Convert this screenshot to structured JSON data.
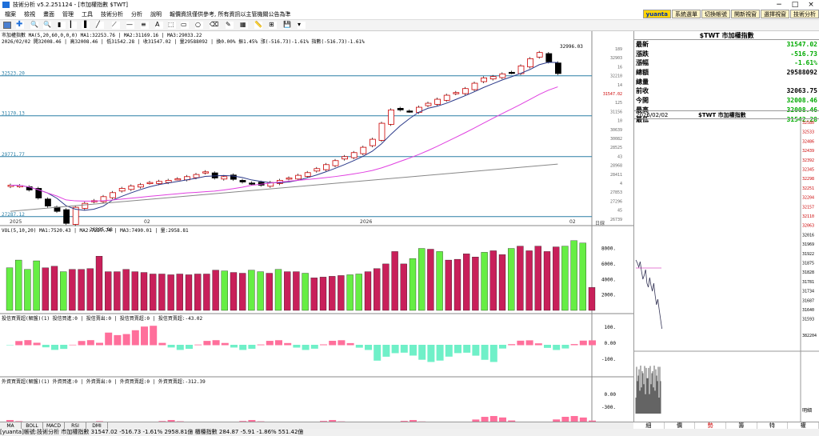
{
  "window": {
    "title": "技術分析 v5.2.251124 - [市加權指數 $TWT]",
    "minimize": "−",
    "maximize": "□",
    "close": "×"
  },
  "menu": [
    "檔案",
    "檢視",
    "畫面",
    "管理",
    "工具",
    "技術分析",
    "分析",
    "說明",
    "報價資訊僅供參考, 所有資訊以主管機關公告為準"
  ],
  "top_buttons": [
    "yuanta",
    "系統選單",
    "切換帳號",
    "開新視窗",
    "選擇視窗",
    "技術分析"
  ],
  "price_pane": {
    "title_line": "市加權指數  MA(5,20,60,0,0,0) MA1:32253.76 | MA2:31169.16 | MA3:29033.22",
    "info_line": "2026/02/02 開32008.46 | 高32008.46 | 低31542.28 | 收31547.02 | 量29588092 | 換0.00% 振1.45% 漲(-516.73)-1.61% 指數(-516.73)-1.61%",
    "levels": [
      {
        "label": "32523.20",
        "y": 0.161
      },
      {
        "label": "31170.13",
        "y": 0.386
      },
      {
        "label": "29771.77",
        "y": 0.616
      },
      {
        "label": "27287.12",
        "y": 0.954
      }
    ],
    "high_label": "32996.03",
    "low_label": "26395.98",
    "current_label": "31547.02",
    "axis_ticks": [
      "189",
      "32903",
      "16",
      "32210",
      "14",
      "31547.02",
      "125",
      "31156",
      "10",
      "30639",
      "30082",
      "28525",
      "43",
      "28968",
      "28411",
      "4",
      "27853",
      "27296",
      "45",
      "26739"
    ],
    "date_labels": [
      "2025",
      "02",
      "2026",
      "02"
    ],
    "axis_unit": "日線"
  },
  "vol_pane": {
    "title": "VOL(5,10,20)  MA1:7520.43 | MA2:7227.74 | MA3:7490.01 | 量:2958.81",
    "ticks": [
      "8000.",
      "6000.",
      "4000.",
      "2000."
    ],
    "values": [
      5500,
      6500,
      5300,
      6400,
      5500,
      5700,
      5000,
      5300,
      5300,
      5400,
      7000,
      5000,
      5000,
      5300,
      5000,
      4900,
      4700,
      4700,
      4600,
      4700,
      4600,
      4700,
      4700,
      5200,
      5100,
      4900,
      4800,
      5200,
      5000,
      4800,
      5300,
      5000,
      5000,
      4800,
      4200,
      4300,
      4400,
      4500,
      4600,
      4700,
      5000,
      5400,
      6000,
      7600,
      6000,
      6700,
      8000,
      7900,
      7600,
      6500,
      6600,
      7300,
      6900,
      7500,
      7700,
      7200,
      8000,
      8300,
      7700,
      8300,
      7600,
      8200,
      8300,
      9000,
      8700,
      2958.81
    ],
    "up": [
      1,
      1,
      1,
      1,
      0,
      0,
      1,
      0,
      0,
      0,
      0,
      0,
      0,
      0,
      0,
      0,
      0,
      0,
      0,
      0,
      0,
      0,
      0,
      0,
      1,
      0,
      0,
      1,
      1,
      0,
      1,
      0,
      0,
      1,
      0,
      0,
      0,
      0,
      1,
      1,
      0,
      0,
      0,
      0,
      0,
      1,
      1,
      0,
      1,
      0,
      0,
      0,
      0,
      1,
      0,
      0,
      1,
      0,
      0,
      0,
      0,
      0,
      1,
      1,
      1,
      0
    ]
  },
  "foreign_pane": {
    "title": "投信買賣超(解盤)(1)  投信買進:0 | 投信賣出:0 | 投信買賣超:0 | 投信買賣超:-43.02",
    "ticks": [
      "100.",
      "0.00",
      "-100."
    ]
  },
  "dealer_pane": {
    "title": "外資買賣超(解盤)(1)  外資買進:0 | 外資賣出:0 | 外資買賣超:0 | 外資買賣超:-312.39",
    "ticks": [
      "0.00",
      "-300."
    ]
  },
  "indicator_tabs": [
    "MA",
    "BOLL",
    "MACD",
    "RSI",
    "DMI"
  ],
  "quote": {
    "header": "$TWT 市加權指數",
    "rows": [
      {
        "label": "最新",
        "value": "31547.02",
        "color": "#00aa00"
      },
      {
        "label": "漲跌",
        "value": "-516.73",
        "color": "#00aa00"
      },
      {
        "label": "漲幅",
        "value": "-1.61%",
        "color": "#00aa00"
      },
      {
        "label": "總額",
        "value": "29588092",
        "color": "#000000"
      },
      {
        "label": "總量",
        "value": "",
        "color": "#000000"
      },
      {
        "label": "前收",
        "value": "32063.75",
        "color": "#000000"
      },
      {
        "label": "今開",
        "value": "32008.46",
        "color": "#00aa00"
      },
      {
        "label": "最高",
        "value": "32008.46",
        "color": "#00aa00"
      },
      {
        "label": "最低",
        "value": "31542.28",
        "color": "#00aa00"
      }
    ]
  },
  "mini_chart": {
    "header_left": "2026/02/02",
    "header_center": "$TWT 市加權指數",
    "ticks": [
      "32580",
      "32533",
      "32486",
      "32439",
      "32392",
      "32345",
      "32298",
      "32251",
      "32204",
      "32157",
      "32110",
      "32063",
      "32016",
      "31969",
      "31922",
      "31875",
      "31828",
      "31781",
      "31734",
      "31687",
      "31640",
      "31593"
    ],
    "bottom_value": "382204",
    "bottom_label": "明細"
  },
  "bottom_tabs": [
    "細",
    "價",
    "勢",
    "籌",
    "特",
    "權"
  ],
  "status": "[yuanta]帳號:技術分析  市加權指數  31547.02 -516.73 -1.61% 2958.81億    櫃檯指數 284.87 -5.91 -1.86% 551.42億"
}
